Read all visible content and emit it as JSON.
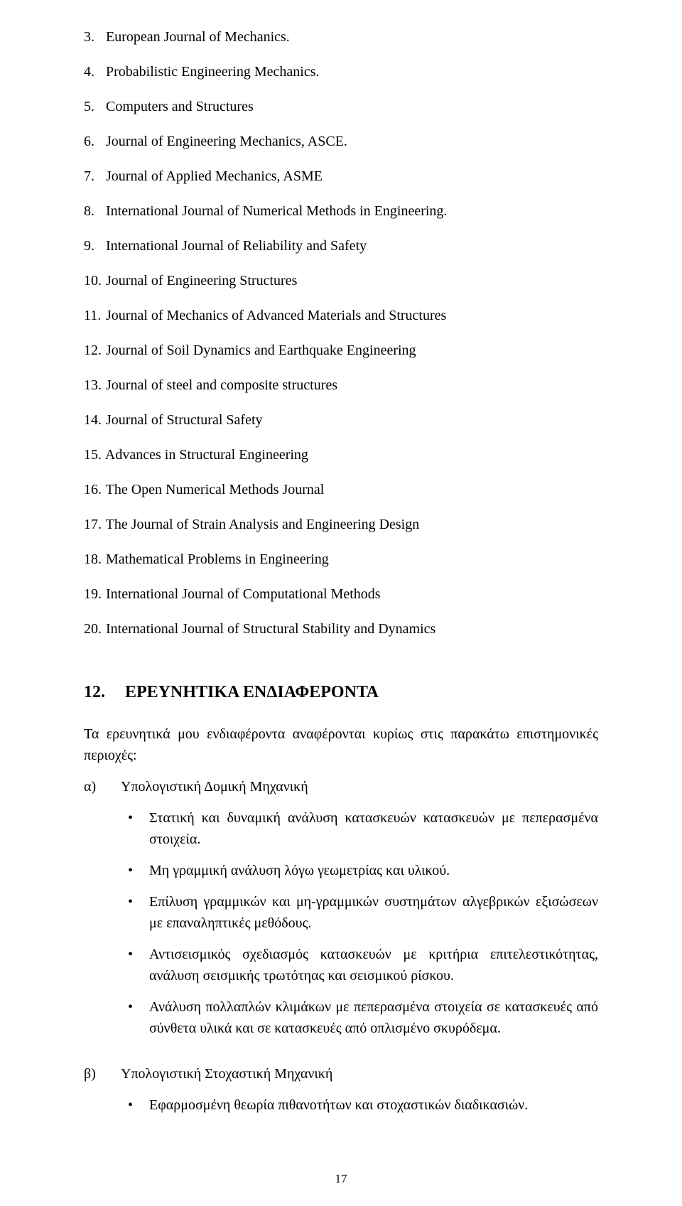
{
  "journals": [
    {
      "n": "3.",
      "title": "European Journal of Mechanics."
    },
    {
      "n": "4.",
      "title": "Probabilistic Engineering Mechanics."
    },
    {
      "n": "5.",
      "title": "Computers and Structures"
    },
    {
      "n": "6.",
      "title": "Journal of Engineering Mechanics, ASCE."
    },
    {
      "n": "7.",
      "title": "Journal of Applied Mechanics, ASME"
    },
    {
      "n": "8.",
      "title": "International Journal of Numerical Methods in Engineering."
    },
    {
      "n": "9.",
      "title": "International Journal of Reliability and Safety"
    },
    {
      "n": "10.",
      "title": "Journal of Engineering Structures"
    },
    {
      "n": "11.",
      "title": "Journal of Mechanics of Advanced Materials and Structures"
    },
    {
      "n": "12.",
      "title": "Journal of Soil Dynamics and Earthquake Engineering"
    },
    {
      "n": "13.",
      "title": "Journal of steel and composite structures"
    },
    {
      "n": "14.",
      "title": "Journal of Structural Safety"
    },
    {
      "n": "15.",
      "title": "Advances in Structural Engineering"
    },
    {
      "n": "16.",
      "title": "The Open Numerical Methods Journal"
    },
    {
      "n": "17.",
      "title": "The Journal of Strain Analysis and Engineering Design"
    },
    {
      "n": "18.",
      "title": "Mathematical Problems in Engineering"
    },
    {
      "n": "19.",
      "title": "International Journal of Computational Methods"
    },
    {
      "n": "20.",
      "title": "International Journal of Structural Stability and Dynamics"
    }
  ],
  "section": {
    "number": "12.",
    "title": "ΕΡΕΥΝΗΤΙΚΑ ΕΝΔΙΑΦΕΡΟΝΤΑ"
  },
  "intro": "Τα ερευνητικά μου ενδιαφέροντα αναφέρονται κυρίως στις παρακάτω επιστημονικές περιοχές:",
  "subA": {
    "label": "α)",
    "title": "Υπολογιστική Δομική Μηχανική",
    "bullets": [
      "Στατική και δυναμική ανάλυση κατασκευών κατασκευών   με   πεπερασμένα στοιχεία.",
      "Μη γραμμική ανάλυση λόγω γεωμετρίας και υλικού.",
      "Επίλυση γραμμικών και μη-γραμμικών συστημάτων αλγεβρικών εξισώσεων με επαναληπτικές μεθόδους.",
      "Αντισεισμικός σχεδιασμός κατασκευών με κριτήρια επιτελεστικότητας, ανάλυση σεισμικής τρωτότηας και σεισμικού ρίσκου.",
      "Ανάλυση πολλαπλών κλιμάκων με πεπερασμένα στοιχεία σε κατασκευές από σύνθετα υλικά και σε κατασκευές από οπλισμένο σκυρόδεμα."
    ]
  },
  "subB": {
    "label": "β)",
    "title": "Υπολογιστική Στοχαστική Μηχανική",
    "bullets": [
      "Εφαρμοσμένη θεωρία πιθανοτήτων και στοχαστικών διαδικασιών."
    ]
  },
  "pageNumber": "17"
}
